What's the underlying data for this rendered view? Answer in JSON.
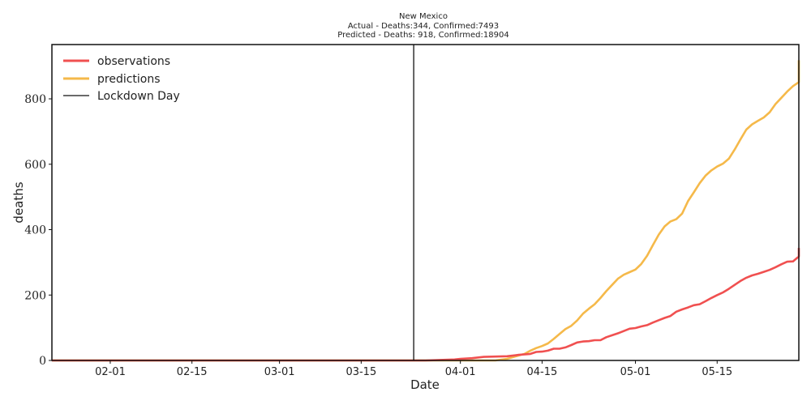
{
  "chart_data": {
    "type": "line",
    "title": "New Mexico",
    "subtitle_1": "Actual - Deaths:344,  Confirmed:7493",
    "subtitle_2": "Predicted - Deaths:  918, Confirmed:18904",
    "xlabel": "Date",
    "ylabel": "deaths",
    "x_ticks": [
      "02-01",
      "02-15",
      "03-01",
      "03-15",
      "04-01",
      "04-15",
      "05-01",
      "05-15"
    ],
    "y_ticks": [
      0,
      200,
      400,
      600,
      800
    ],
    "xlim": [
      "2020-01-22",
      "2020-05-29"
    ],
    "ylim": [
      0,
      966
    ],
    "grid": false,
    "legend_position": "top-left",
    "lockdown_day": "2020-03-24",
    "colors": {
      "observations": "#f05050",
      "predictions": "#f5b94a",
      "lockdown": "#111111"
    },
    "legend": [
      "observations",
      "predictions",
      "Lockdown Day"
    ],
    "series": [
      {
        "name": "observations",
        "points": [
          [
            "2020-01-22",
            0
          ],
          [
            "2020-03-24",
            0
          ],
          [
            "2020-03-26",
            0
          ],
          [
            "2020-03-28",
            1
          ],
          [
            "2020-03-31",
            3
          ],
          [
            "2020-04-01",
            5
          ],
          [
            "2020-04-03",
            7
          ],
          [
            "2020-04-05",
            11
          ],
          [
            "2020-04-07",
            12
          ],
          [
            "2020-04-09",
            13
          ],
          [
            "2020-04-11",
            17
          ],
          [
            "2020-04-13",
            20
          ],
          [
            "2020-04-14",
            26
          ],
          [
            "2020-04-15",
            27
          ],
          [
            "2020-04-16",
            30
          ],
          [
            "2020-04-17",
            36
          ],
          [
            "2020-04-18",
            36
          ],
          [
            "2020-04-19",
            40
          ],
          [
            "2020-04-20",
            47
          ],
          [
            "2020-04-21",
            55
          ],
          [
            "2020-04-22",
            58
          ],
          [
            "2020-04-23",
            59
          ],
          [
            "2020-04-24",
            62
          ],
          [
            "2020-04-25",
            62
          ],
          [
            "2020-04-26",
            71
          ],
          [
            "2020-04-27",
            77
          ],
          [
            "2020-04-28",
            83
          ],
          [
            "2020-04-29",
            90
          ],
          [
            "2020-04-30",
            97
          ],
          [
            "2020-05-01",
            99
          ],
          [
            "2020-05-02",
            104
          ],
          [
            "2020-05-03",
            108
          ],
          [
            "2020-05-04",
            116
          ],
          [
            "2020-05-05",
            123
          ],
          [
            "2020-05-06",
            130
          ],
          [
            "2020-05-07",
            136
          ],
          [
            "2020-05-08",
            149
          ],
          [
            "2020-05-09",
            156
          ],
          [
            "2020-05-10",
            162
          ],
          [
            "2020-05-11",
            169
          ],
          [
            "2020-05-12",
            172
          ],
          [
            "2020-05-13",
            181
          ],
          [
            "2020-05-14",
            191
          ],
          [
            "2020-05-15",
            200
          ],
          [
            "2020-05-16",
            208
          ],
          [
            "2020-05-17",
            219
          ],
          [
            "2020-05-18",
            231
          ],
          [
            "2020-05-19",
            243
          ],
          [
            "2020-05-20",
            253
          ],
          [
            "2020-05-21",
            260
          ],
          [
            "2020-05-22",
            265
          ],
          [
            "2020-05-23",
            271
          ],
          [
            "2020-05-24",
            277
          ],
          [
            "2020-05-25",
            285
          ],
          [
            "2020-05-26",
            294
          ],
          [
            "2020-05-27",
            302
          ],
          [
            "2020-05-28",
            303
          ],
          [
            "2020-05-29",
            318
          ],
          [
            "2020-05-30",
            320
          ],
          [
            "2020-05-31",
            325
          ],
          [
            "2020-06-01",
            329
          ],
          [
            "2020-06-02",
            335
          ],
          [
            "2020-06-03",
            344
          ]
        ]
      },
      {
        "name": "predictions",
        "points": [
          [
            "2020-01-22",
            0
          ],
          [
            "2020-04-07",
            0
          ],
          [
            "2020-04-09",
            5
          ],
          [
            "2020-04-11",
            15
          ],
          [
            "2020-04-12",
            20
          ],
          [
            "2020-04-13",
            30
          ],
          [
            "2020-04-14",
            38
          ],
          [
            "2020-04-15",
            44
          ],
          [
            "2020-04-16",
            52
          ],
          [
            "2020-04-17",
            66
          ],
          [
            "2020-04-18",
            81
          ],
          [
            "2020-04-19",
            96
          ],
          [
            "2020-04-20",
            106
          ],
          [
            "2020-04-21",
            122
          ],
          [
            "2020-04-22",
            143
          ],
          [
            "2020-04-23",
            158
          ],
          [
            "2020-04-24",
            172
          ],
          [
            "2020-04-25",
            191
          ],
          [
            "2020-04-26",
            212
          ],
          [
            "2020-04-27",
            231
          ],
          [
            "2020-04-28",
            250
          ],
          [
            "2020-04-29",
            262
          ],
          [
            "2020-04-30",
            270
          ],
          [
            "2020-05-01",
            278
          ],
          [
            "2020-05-02",
            295
          ],
          [
            "2020-05-03",
            320
          ],
          [
            "2020-05-04",
            353
          ],
          [
            "2020-05-05",
            385
          ],
          [
            "2020-05-06",
            410
          ],
          [
            "2020-05-07",
            425
          ],
          [
            "2020-05-08",
            432
          ],
          [
            "2020-05-09",
            449
          ],
          [
            "2020-05-10",
            487
          ],
          [
            "2020-05-11",
            514
          ],
          [
            "2020-05-12",
            542
          ],
          [
            "2020-05-13",
            565
          ],
          [
            "2020-05-14",
            581
          ],
          [
            "2020-05-15",
            593
          ],
          [
            "2020-05-16",
            602
          ],
          [
            "2020-05-17",
            617
          ],
          [
            "2020-05-18",
            645
          ],
          [
            "2020-05-19",
            676
          ],
          [
            "2020-05-20",
            706
          ],
          [
            "2020-05-21",
            722
          ],
          [
            "2020-05-22",
            733
          ],
          [
            "2020-05-23",
            743
          ],
          [
            "2020-05-24",
            759
          ],
          [
            "2020-05-25",
            784
          ],
          [
            "2020-05-26",
            803
          ],
          [
            "2020-05-27",
            822
          ],
          [
            "2020-05-28",
            839
          ],
          [
            "2020-05-29",
            851
          ],
          [
            "2020-05-30",
            856
          ],
          [
            "2020-05-31",
            864
          ],
          [
            "2020-06-01",
            884
          ],
          [
            "2020-06-02",
            904
          ],
          [
            "2020-06-03",
            918
          ]
        ]
      }
    ]
  }
}
